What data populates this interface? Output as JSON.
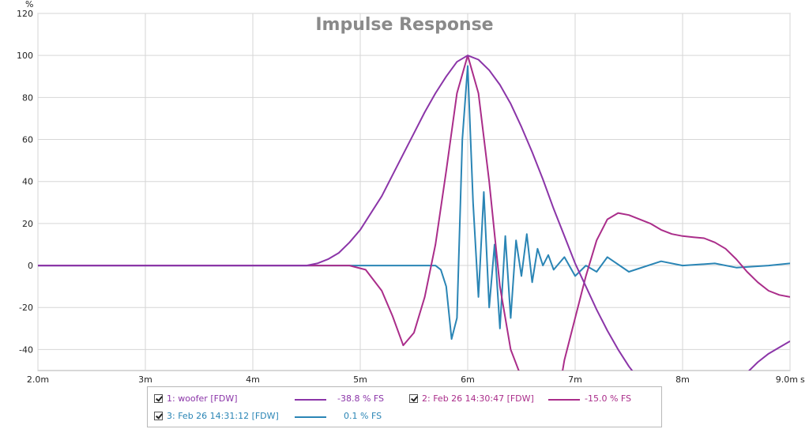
{
  "chart_data": {
    "type": "line",
    "title": "Impulse Response",
    "ylabel": "%",
    "xunit": "s",
    "xlim": [
      0.002,
      0.009
    ],
    "ylim": [
      -50,
      120
    ],
    "xticks": [
      {
        "v": 0.002,
        "label": "2.0m"
      },
      {
        "v": 0.003,
        "label": "3m"
      },
      {
        "v": 0.004,
        "label": "4m"
      },
      {
        "v": 0.005,
        "label": "5m"
      },
      {
        "v": 0.006,
        "label": "6m"
      },
      {
        "v": 0.007,
        "label": "7m"
      },
      {
        "v": 0.008,
        "label": "8m"
      },
      {
        "v": 0.009,
        "label": "9.0m"
      }
    ],
    "yticks": [
      {
        "v": 120,
        "label": "120"
      },
      {
        "v": 100,
        "label": "100"
      },
      {
        "v": 80,
        "label": "80"
      },
      {
        "v": 60,
        "label": "60"
      },
      {
        "v": 40,
        "label": "40"
      },
      {
        "v": 20,
        "label": "20"
      },
      {
        "v": 0,
        "label": "0"
      },
      {
        "v": -20,
        "label": "-20"
      },
      {
        "v": -40,
        "label": "-40"
      }
    ],
    "grid": true,
    "legend_position": "bottom",
    "series": [
      {
        "name": "1: woofer [FDW]",
        "value_label": "-38.8 % FS",
        "color": "#8b35a8",
        "points": [
          [
            0.002,
            0
          ],
          [
            0.0045,
            0
          ],
          [
            0.0046,
            1
          ],
          [
            0.0047,
            3
          ],
          [
            0.0048,
            6
          ],
          [
            0.0049,
            11
          ],
          [
            0.005,
            17
          ],
          [
            0.0051,
            25
          ],
          [
            0.0052,
            33
          ],
          [
            0.0053,
            43
          ],
          [
            0.0054,
            53
          ],
          [
            0.0055,
            63
          ],
          [
            0.0056,
            73
          ],
          [
            0.0057,
            82
          ],
          [
            0.0058,
            90
          ],
          [
            0.0059,
            97
          ],
          [
            0.006,
            100
          ],
          [
            0.0061,
            98
          ],
          [
            0.0062,
            93
          ],
          [
            0.0063,
            86
          ],
          [
            0.0064,
            77
          ],
          [
            0.0065,
            66
          ],
          [
            0.0066,
            54
          ],
          [
            0.0067,
            41
          ],
          [
            0.0068,
            27
          ],
          [
            0.0069,
            14
          ],
          [
            0.007,
            1
          ],
          [
            0.0071,
            -10
          ],
          [
            0.0072,
            -21
          ],
          [
            0.0073,
            -31
          ],
          [
            0.0074,
            -40
          ],
          [
            0.0075,
            -48
          ],
          [
            0.00765,
            -58
          ],
          [
            0.0085,
            -58
          ],
          [
            0.0086,
            -51
          ],
          [
            0.0087,
            -46
          ],
          [
            0.0088,
            -42
          ],
          [
            0.0089,
            -39
          ],
          [
            0.009,
            -36
          ]
        ]
      },
      {
        "name": "2: Feb 26 14:30:47 [FDW]",
        "value_label": "-15.0 % FS",
        "color": "#aa2d8a",
        "points": [
          [
            0.002,
            0
          ],
          [
            0.0049,
            0
          ],
          [
            0.00505,
            -2
          ],
          [
            0.0052,
            -12
          ],
          [
            0.0053,
            -24
          ],
          [
            0.0054,
            -38
          ],
          [
            0.0055,
            -32
          ],
          [
            0.0056,
            -15
          ],
          [
            0.0057,
            10
          ],
          [
            0.0058,
            45
          ],
          [
            0.0059,
            82
          ],
          [
            0.006,
            100
          ],
          [
            0.0061,
            82
          ],
          [
            0.0062,
            40
          ],
          [
            0.0063,
            -10
          ],
          [
            0.0064,
            -40
          ],
          [
            0.00655,
            -60
          ],
          [
            0.00685,
            -60
          ],
          [
            0.0069,
            -45
          ],
          [
            0.007,
            -25
          ],
          [
            0.0071,
            -5
          ],
          [
            0.0072,
            12
          ],
          [
            0.0073,
            22
          ],
          [
            0.0074,
            25
          ],
          [
            0.0075,
            24
          ],
          [
            0.0076,
            22
          ],
          [
            0.0077,
            20
          ],
          [
            0.0078,
            17
          ],
          [
            0.0079,
            15
          ],
          [
            0.008,
            14
          ],
          [
            0.0081,
            13.5
          ],
          [
            0.0082,
            13
          ],
          [
            0.0083,
            11
          ],
          [
            0.0084,
            8
          ],
          [
            0.0085,
            3
          ],
          [
            0.0086,
            -3
          ],
          [
            0.0087,
            -8
          ],
          [
            0.0088,
            -12
          ],
          [
            0.0089,
            -14
          ],
          [
            0.009,
            -15
          ]
        ]
      },
      {
        "name": "3: Feb 26 14:31:12 [FDW]",
        "value_label": "0.1 % FS",
        "color": "#2a85b5",
        "points": [
          [
            0.002,
            0
          ],
          [
            0.0057,
            0
          ],
          [
            0.00575,
            -2
          ],
          [
            0.0058,
            -10
          ],
          [
            0.00585,
            -35
          ],
          [
            0.0059,
            -25
          ],
          [
            0.00595,
            60
          ],
          [
            0.006,
            95
          ],
          [
            0.00605,
            30
          ],
          [
            0.0061,
            -15
          ],
          [
            0.00615,
            35
          ],
          [
            0.0062,
            -20
          ],
          [
            0.00625,
            10
          ],
          [
            0.0063,
            -30
          ],
          [
            0.00635,
            14
          ],
          [
            0.0064,
            -25
          ],
          [
            0.00645,
            12
          ],
          [
            0.0065,
            -5
          ],
          [
            0.00655,
            15
          ],
          [
            0.0066,
            -8
          ],
          [
            0.00665,
            8
          ],
          [
            0.0067,
            0
          ],
          [
            0.00675,
            5
          ],
          [
            0.0068,
            -2
          ],
          [
            0.0069,
            4
          ],
          [
            0.007,
            -5
          ],
          [
            0.0071,
            0
          ],
          [
            0.0072,
            -3
          ],
          [
            0.0073,
            4
          ],
          [
            0.0075,
            -3
          ],
          [
            0.0078,
            2
          ],
          [
            0.008,
            0
          ],
          [
            0.0083,
            1
          ],
          [
            0.0085,
            -1
          ],
          [
            0.0088,
            0
          ],
          [
            0.009,
            1
          ]
        ]
      }
    ]
  }
}
